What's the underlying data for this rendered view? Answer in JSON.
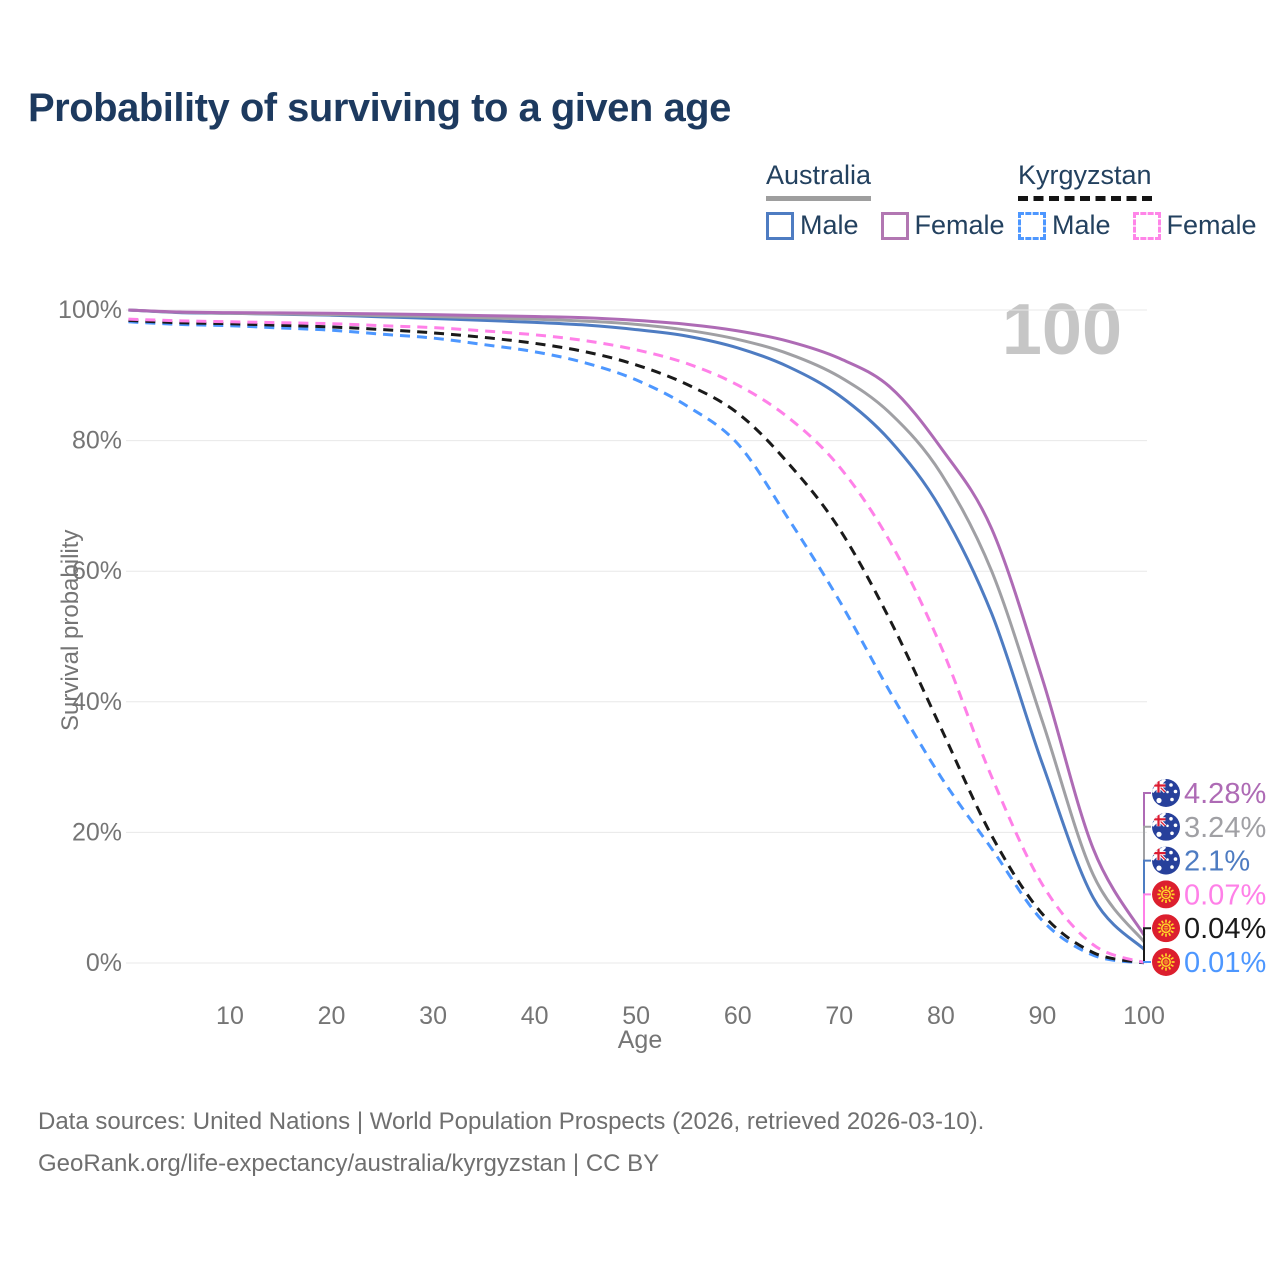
{
  "title": "Probability of surviving to a given age",
  "watermark_age": "100",
  "legend": {
    "australia": {
      "label": "Australia",
      "male": "Male",
      "female": "Female"
    },
    "kyrgyzstan": {
      "label": "Kyrgyzstan",
      "male": "Male",
      "female": "Female"
    }
  },
  "footer": {
    "line1": "Data sources: United Nations | World Population Prospects (2026, retrieved 2026-03-10).",
    "line2": "GeoRank.org/life-expectancy/australia/kyrgyzstan | CC BY"
  },
  "chart_data": {
    "type": "line",
    "title": "Probability of surviving to a given age",
    "xlabel": "Age",
    "ylabel": "Survival probability",
    "xlim": [
      0,
      100
    ],
    "ylim": [
      0,
      100
    ],
    "grid": "horizontal",
    "legend_position": "top-right",
    "age_marker": "100",
    "x": [
      0,
      5,
      10,
      15,
      20,
      25,
      30,
      35,
      40,
      45,
      50,
      55,
      60,
      65,
      70,
      75,
      80,
      85,
      90,
      95,
      100
    ],
    "x_ticks": [
      {
        "value": 10,
        "label": "10"
      },
      {
        "value": 20,
        "label": "20"
      },
      {
        "value": 30,
        "label": "30"
      },
      {
        "value": 40,
        "label": "40"
      },
      {
        "value": 50,
        "label": "50"
      },
      {
        "value": 60,
        "label": "60"
      },
      {
        "value": 70,
        "label": "70"
      },
      {
        "value": 80,
        "label": "80"
      },
      {
        "value": 90,
        "label": "90"
      },
      {
        "value": 100,
        "label": "100"
      }
    ],
    "y_ticks": [
      {
        "value": 0,
        "label": "0%"
      },
      {
        "value": 20,
        "label": "20%"
      },
      {
        "value": 40,
        "label": "40%"
      },
      {
        "value": 60,
        "label": "60%"
      },
      {
        "value": 80,
        "label": "80%"
      },
      {
        "value": 100,
        "label": "100%"
      }
    ],
    "series": [
      {
        "id": "kyrgyzstan-male",
        "name": "Kyrgyzstan Male",
        "country": "Kyrgyzstan",
        "sex": "male",
        "color": "#4d97ff",
        "dash": true,
        "flag": "kyrgyzstan",
        "end_label": "0.01%",
        "values": [
          98.2,
          97.8,
          97.6,
          97.25,
          96.9,
          96.3,
          95.7,
          94.7,
          93.6,
          91.9,
          89.3,
          85.3,
          79.5,
          68.0,
          55.5,
          41.5,
          28.5,
          17.5,
          6.5,
          1.2,
          0.01
        ]
      },
      {
        "id": "kyrgyzstan-all",
        "name": "Kyrgyzstan Both sexes",
        "country": "Kyrgyzstan",
        "sex": "all",
        "color": "#1a1a1a",
        "dash": true,
        "flag": "kyrgyzstan",
        "end_label": "0.04%",
        "values": [
          98.4,
          98.05,
          97.9,
          97.65,
          97.4,
          97.0,
          96.5,
          95.8,
          94.9,
          93.6,
          91.6,
          88.6,
          84.2,
          76.5,
          66.5,
          52.5,
          36.0,
          19.5,
          7.5,
          1.6,
          0.04
        ]
      },
      {
        "id": "kyrgyzstan-female",
        "name": "Kyrgyzstan Female",
        "country": "Kyrgyzstan",
        "sex": "female",
        "color": "#ff80e8",
        "dash": true,
        "flag": "kyrgyzstan",
        "end_label": "0.07%",
        "values": [
          98.6,
          98.35,
          98.2,
          98.05,
          97.9,
          97.6,
          97.3,
          96.8,
          96.2,
          95.3,
          93.9,
          91.8,
          88.5,
          83.5,
          76.0,
          64.5,
          48.5,
          28.5,
          12.0,
          2.8,
          0.07
        ]
      },
      {
        "id": "australia-male",
        "name": "Australia Male",
        "country": "Australia",
        "sex": "male",
        "color": "#4e7cc2",
        "dash": false,
        "flag": "australia",
        "end_label": "2.1%",
        "values": [
          100,
          99.6,
          99.5,
          99.35,
          99.2,
          98.95,
          98.7,
          98.4,
          98.1,
          97.7,
          97.0,
          96.0,
          94.2,
          91.3,
          86.9,
          80.0,
          69.5,
          53.5,
          30.5,
          10.0,
          2.1
        ]
      },
      {
        "id": "australia-all",
        "name": "Australia Both sexes",
        "country": "Australia",
        "sex": "all",
        "color": "#a0a0a4",
        "dash": false,
        "flag": "australia",
        "end_label": "3.24%",
        "values": [
          100,
          99.65,
          99.5,
          99.4,
          99.3,
          99.15,
          99.0,
          98.8,
          98.6,
          98.3,
          97.8,
          96.9,
          95.5,
          93.3,
          89.8,
          84.2,
          75.0,
          60.0,
          37.0,
          13.5,
          3.24
        ]
      },
      {
        "id": "australia-female",
        "name": "Australia Female",
        "country": "Australia",
        "sex": "female",
        "color": "#ae6bb5",
        "dash": false,
        "flag": "australia",
        "end_label": "4.28%",
        "values": [
          100,
          99.7,
          99.6,
          99.55,
          99.5,
          99.4,
          99.3,
          99.15,
          99.0,
          98.8,
          98.4,
          97.8,
          96.8,
          95.2,
          92.6,
          88.2,
          78.9,
          66.5,
          43.5,
          17.5,
          4.28
        ]
      }
    ]
  }
}
